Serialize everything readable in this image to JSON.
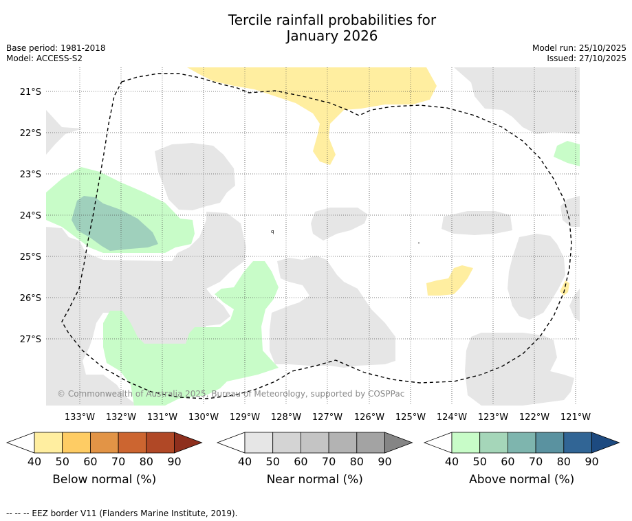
{
  "title_line1": "Tercile rainfall probabilities for",
  "title_line2": "January 2026",
  "base_period": "Base period: 1981-2018",
  "model": "Model: ACCESS-S2",
  "model_run": "Model run: 25/10/2025",
  "issued": "Issued: 27/10/2025",
  "copyright": "© Commonwealth of Australia 2025, Bureau of Meteorology, supported by COSPPac",
  "footer": "--  --  -- EEZ border V11 (Flanders Marine Institute, 2019).",
  "lat_labels": [
    "21°S",
    "22°S",
    "23°S",
    "24°S",
    "25°S",
    "26°S",
    "27°S"
  ],
  "lon_labels": [
    "133°W",
    "132°W",
    "131°W",
    "130°W",
    "129°W",
    "128°W",
    "127°W",
    "126°W",
    "125°W",
    "124°W",
    "123°W",
    "122°W",
    "121°W"
  ],
  "legends": [
    {
      "label": "Below normal (%)",
      "ticks": [
        "40",
        "50",
        "60",
        "70",
        "80",
        "90"
      ],
      "colors": [
        "#ffeea0",
        "#fecc64",
        "#e29446",
        "#cc6530",
        "#b04826",
        "#8e2f1d"
      ]
    },
    {
      "label": "Near normal (%)",
      "ticks": [
        "40",
        "50",
        "60",
        "70",
        "80",
        "90"
      ],
      "colors": [
        "#e6e6e6",
        "#d4d4d4",
        "#c4c4c4",
        "#b3b3b3",
        "#a3a3a3",
        "#858585"
      ]
    },
    {
      "label": "Above normal (%)",
      "ticks": [
        "40",
        "50",
        "60",
        "70",
        "80",
        "90"
      ],
      "colors": [
        "#c8fcc8",
        "#a5d6b9",
        "#7eb5ae",
        "#5a92a0",
        "#316595",
        "#1d4a80"
      ]
    }
  ],
  "colors": {
    "near_normal_fill": "#e6e6e6",
    "above_normal_40": "#c8fcc8",
    "above_normal_50": "#9fd0bc",
    "below_normal_40": "#ffeea0",
    "grid": "#555555",
    "eez": "#000000"
  }
}
